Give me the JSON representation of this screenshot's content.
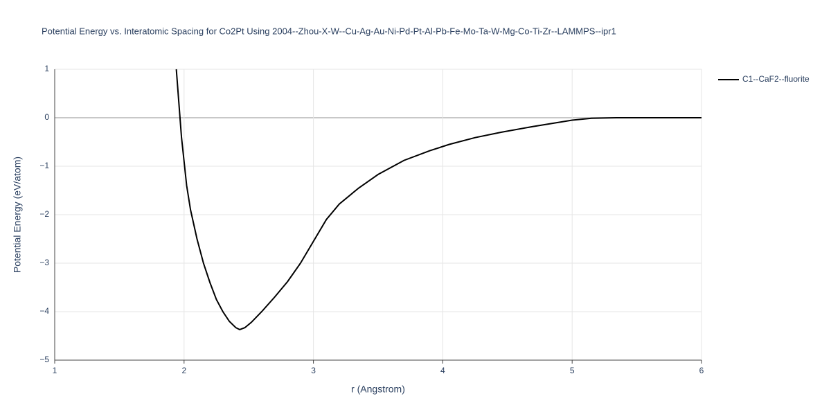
{
  "chart_data": {
    "type": "line",
    "title": "Potential Energy vs. Interatomic Spacing for Co2Pt Using 2004--Zhou-X-W--Cu-Ag-Au-Ni-Pd-Pt-Al-Pb-Fe-Mo-Ta-W-Mg-Co-Ti-Zr--LAMMPS--ipr1",
    "x_label": "r (Angstrom)",
    "y_label": "Potential Energy (eV/atom)",
    "x": [
      1.94,
      1.96,
      1.98,
      2.0,
      2.02,
      2.05,
      2.1,
      2.15,
      2.2,
      2.25,
      2.3,
      2.35,
      2.4,
      2.43,
      2.47,
      2.52,
      2.6,
      2.7,
      2.8,
      2.9,
      3.0,
      3.1,
      3.2,
      3.35,
      3.5,
      3.7,
      3.9,
      4.05,
      4.25,
      4.45,
      4.7,
      5.0,
      5.15,
      5.35,
      6.0
    ],
    "series": [
      {
        "name": "C1--CaF2--fluorite",
        "color": "#000000",
        "values": [
          1.0,
          0.3,
          -0.4,
          -0.9,
          -1.4,
          -1.9,
          -2.5,
          -3.0,
          -3.4,
          -3.75,
          -4.0,
          -4.2,
          -4.33,
          -4.37,
          -4.33,
          -4.22,
          -4.0,
          -3.7,
          -3.38,
          -3.0,
          -2.55,
          -2.1,
          -1.78,
          -1.45,
          -1.17,
          -0.88,
          -0.68,
          -0.55,
          -0.41,
          -0.3,
          -0.18,
          -0.05,
          -0.01,
          0,
          0
        ]
      }
    ],
    "xlim": [
      1,
      6
    ],
    "ylim": [
      -5,
      1
    ],
    "xticks": [
      1,
      2,
      3,
      4,
      5,
      6
    ],
    "yticks": [
      {
        "value": -5,
        "label": "−5"
      },
      {
        "value": -4,
        "label": "−4"
      },
      {
        "value": -3,
        "label": "−3"
      },
      {
        "value": -2,
        "label": "−2"
      },
      {
        "value": -1,
        "label": "−1"
      },
      0,
      1
    ],
    "grid": true,
    "legend": "right"
  }
}
